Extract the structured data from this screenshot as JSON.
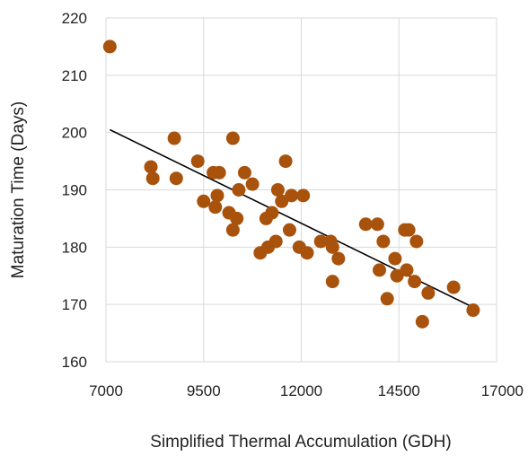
{
  "chart_data": {
    "type": "scatter",
    "title": "",
    "xlabel": "Simplified Thermal Accumulation (GDH)",
    "ylabel": "Maturation Time (Days)",
    "xlim": [
      7000,
      17000
    ],
    "ylim": [
      160,
      220
    ],
    "xticks": [
      "7000",
      "9500",
      "12000",
      "14500",
      "17000"
    ],
    "yticks": [
      "160",
      "170",
      "180",
      "190",
      "200",
      "210",
      "220"
    ],
    "grid": true,
    "legend": "none",
    "marker_color": "#a8520c",
    "trendline": {
      "type": "linear",
      "x": [
        7100,
        16400
      ],
      "y": [
        200.5,
        169.5
      ],
      "color": "#000000"
    },
    "series": [
      {
        "points": [
          [
            7100,
            215
          ],
          [
            8150,
            194
          ],
          [
            8200,
            192
          ],
          [
            8750,
            199
          ],
          [
            8800,
            192
          ],
          [
            9350,
            195
          ],
          [
            9500,
            188
          ],
          [
            9750,
            193
          ],
          [
            9800,
            187
          ],
          [
            9850,
            189
          ],
          [
            9900,
            193
          ],
          [
            10150,
            186
          ],
          [
            10250,
            199
          ],
          [
            10250,
            183
          ],
          [
            10350,
            185
          ],
          [
            10400,
            190
          ],
          [
            10550,
            193
          ],
          [
            10750,
            191
          ],
          [
            10950,
            179
          ],
          [
            11100,
            185
          ],
          [
            11150,
            180
          ],
          [
            11250,
            186
          ],
          [
            11350,
            181
          ],
          [
            11400,
            190
          ],
          [
            11500,
            188
          ],
          [
            11600,
            195
          ],
          [
            11700,
            183
          ],
          [
            11750,
            189
          ],
          [
            11950,
            180
          ],
          [
            12050,
            189
          ],
          [
            12150,
            179
          ],
          [
            12500,
            181
          ],
          [
            12750,
            181
          ],
          [
            12800,
            180
          ],
          [
            12800,
            174
          ],
          [
            12950,
            178
          ],
          [
            13650,
            184
          ],
          [
            13950,
            184
          ],
          [
            14000,
            176
          ],
          [
            14100,
            181
          ],
          [
            14200,
            171
          ],
          [
            14400,
            178
          ],
          [
            14450,
            175
          ],
          [
            14650,
            183
          ],
          [
            14700,
            176
          ],
          [
            14750,
            183
          ],
          [
            14900,
            174
          ],
          [
            14950,
            181
          ],
          [
            15100,
            167
          ],
          [
            15250,
            172
          ],
          [
            15900,
            173
          ],
          [
            16400,
            169
          ]
        ]
      }
    ]
  }
}
